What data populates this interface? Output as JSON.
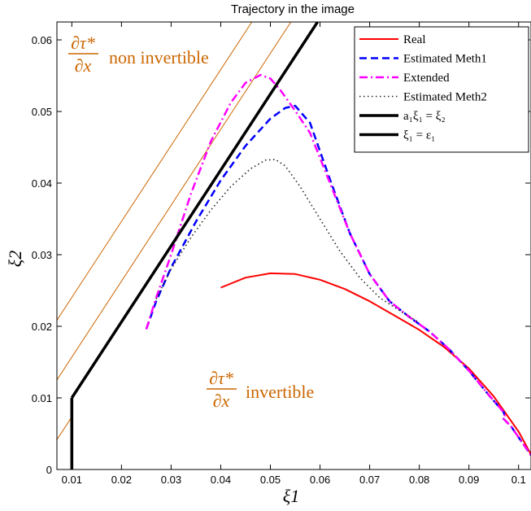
{
  "chart_data": {
    "type": "line",
    "title": "Trajectory in the image",
    "xlabel": "ξ1",
    "ylabel": "ξ2",
    "xlim": [
      0.007,
      0.1025
    ],
    "ylim": [
      0,
      0.0625
    ],
    "x_ticks": [
      0.01,
      0.02,
      0.03,
      0.04,
      0.05,
      0.06,
      0.07,
      0.08,
      0.09,
      0.1
    ],
    "x_tick_labels": [
      "0.01",
      "0.02",
      "0.03",
      "0.04",
      "0.05",
      "0.06",
      "0.07",
      "0.08",
      "0.09",
      "0.1"
    ],
    "y_ticks": [
      0,
      0.01,
      0.02,
      0.03,
      0.04,
      0.05,
      0.06
    ],
    "y_tick_labels": [
      "0",
      "0.01",
      "0.02",
      "0.03",
      "0.04",
      "0.05",
      "0.06"
    ],
    "grid": false,
    "legend_position": "top-right",
    "colors": {
      "real": "#ff0000",
      "meth1": "#0000ff",
      "extended": "#ff00ff",
      "meth2": "#222222",
      "boundary": "#000000",
      "hatch": "#cc6600",
      "region_label": "#cc6600"
    },
    "annotations": {
      "non_invertible": {
        "fraction_num": "∂τ*",
        "fraction_den": "∂x",
        "text": "non invertible"
      },
      "invertible": {
        "fraction_num": "∂τ*",
        "fraction_den": "∂x",
        "text": "invertible"
      }
    },
    "series": [
      {
        "name": "Real",
        "style": "solid",
        "x": [
          0.04,
          0.045,
          0.05,
          0.055,
          0.06,
          0.065,
          0.07,
          0.075,
          0.08,
          0.085,
          0.09,
          0.095,
          0.1,
          0.1025
        ],
        "y": [
          0.0254,
          0.0268,
          0.0274,
          0.0273,
          0.0265,
          0.0252,
          0.0235,
          0.0215,
          0.0195,
          0.0171,
          0.0141,
          0.0102,
          0.0053,
          0.0021
        ]
      },
      {
        "name": "Estimated Meth1",
        "style": "dashed",
        "x": [
          0.025,
          0.027,
          0.03,
          0.035,
          0.04,
          0.045,
          0.05,
          0.053,
          0.055,
          0.058,
          0.062,
          0.066,
          0.07,
          0.074,
          0.078,
          0.082,
          0.086,
          0.09,
          0.094,
          0.097,
          0.0972,
          0.0968,
          0.0985,
          0.1,
          0.1015,
          0.1025
        ],
        "y": [
          0.0196,
          0.0235,
          0.0282,
          0.0346,
          0.0404,
          0.0452,
          0.049,
          0.0505,
          0.0508,
          0.0484,
          0.0405,
          0.033,
          0.0273,
          0.0235,
          0.0213,
          0.0193,
          0.0168,
          0.0138,
          0.0104,
          0.008,
          0.0075,
          0.0072,
          0.006,
          0.0045,
          0.003,
          0.002
        ]
      },
      {
        "name": "Extended",
        "style": "dashdot",
        "x": [
          0.025,
          0.027,
          0.03,
          0.034,
          0.038,
          0.042,
          0.045,
          0.048,
          0.05,
          0.052,
          0.055,
          0.058,
          0.062,
          0.066,
          0.07,
          0.074,
          0.078,
          0.082,
          0.086,
          0.09,
          0.094,
          0.097,
          0.0972,
          0.0968,
          0.0985,
          0.1,
          0.1015,
          0.1025
        ],
        "y": [
          0.0196,
          0.024,
          0.03,
          0.0385,
          0.0458,
          0.0512,
          0.054,
          0.0551,
          0.0546,
          0.053,
          0.0501,
          0.047,
          0.04,
          0.033,
          0.0273,
          0.0235,
          0.0213,
          0.0193,
          0.0168,
          0.0138,
          0.0104,
          0.008,
          0.0075,
          0.0072,
          0.006,
          0.0045,
          0.003,
          0.002
        ]
      },
      {
        "name": "Estimated Meth2",
        "style": "dotted",
        "x": [
          0.027,
          0.03,
          0.034,
          0.038,
          0.042,
          0.046,
          0.049,
          0.051,
          0.053,
          0.056,
          0.06,
          0.064,
          0.068,
          0.072,
          0.076,
          0.08
        ],
        "y": [
          0.0238,
          0.028,
          0.0324,
          0.0362,
          0.0395,
          0.042,
          0.0432,
          0.0433,
          0.0424,
          0.0395,
          0.035,
          0.0305,
          0.0268,
          0.024,
          0.0222,
          0.0205
        ]
      },
      {
        "name": "a₁ξ₁ = ξ₂",
        "style": "thick",
        "x": [
          0.01,
          0.0595
        ],
        "y": [
          0.01,
          0.0625
        ]
      },
      {
        "name": "ξ₁ = ε₁",
        "style": "thick",
        "x": [
          0.01,
          0.01
        ],
        "y": [
          0,
          0.01
        ]
      }
    ]
  }
}
